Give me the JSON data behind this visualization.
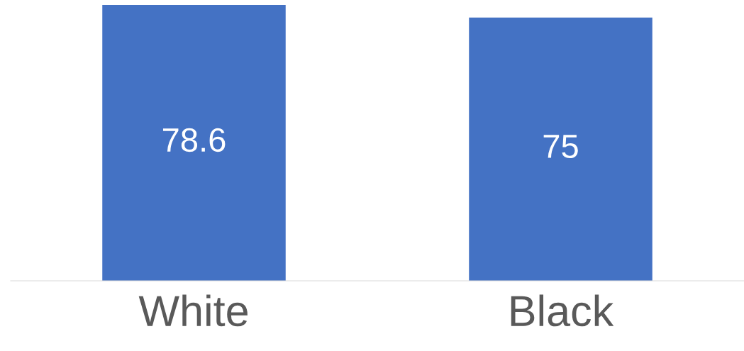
{
  "chart_data": {
    "type": "bar",
    "categories": [
      "White",
      "Black"
    ],
    "values": [
      78.6,
      75
    ],
    "color": "#4472c4",
    "data_labels": true,
    "grid": false,
    "legend": false,
    "tick_labels": "x"
  }
}
